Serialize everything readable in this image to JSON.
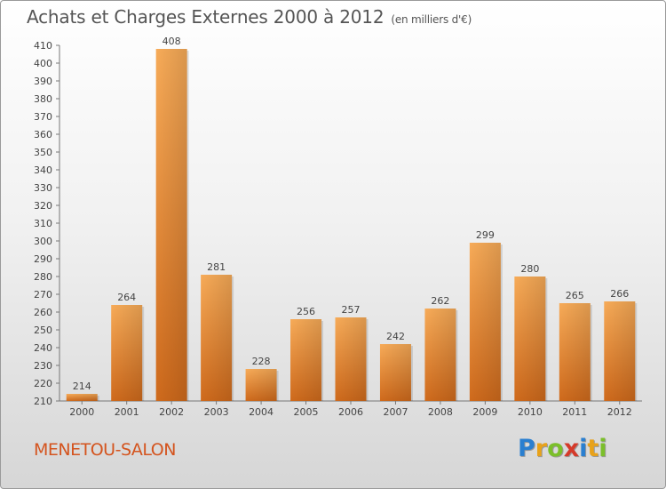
{
  "title": "Achats et Charges Externes 2000 à 2012",
  "subtitle": "(en milliers d'€)",
  "commune": "MENETOU-SALON",
  "logo": {
    "letters": [
      "P",
      "r",
      "o",
      "x",
      "i",
      "t",
      "i"
    ],
    "colors": [
      "#2a7fd0",
      "#e8a21a",
      "#7bbf2a",
      "#d53a2a",
      "#2a7fd0",
      "#e8a21a",
      "#7bbf2a"
    ]
  },
  "colors": {
    "bar_light": "#f5a550",
    "bar_dark": "#cf6a1c",
    "title": "#555555",
    "commune": "#d4541e"
  },
  "chart_data": {
    "type": "bar",
    "title": "Achats et Charges Externes 2000 à 2012",
    "subtitle": "(en milliers d'€)",
    "xlabel": "",
    "ylabel": "",
    "categories": [
      "2000",
      "2001",
      "2002",
      "2003",
      "2004",
      "2005",
      "2006",
      "2007",
      "2008",
      "2009",
      "2010",
      "2011",
      "2012"
    ],
    "values": [
      214,
      264,
      408,
      281,
      228,
      256,
      257,
      242,
      262,
      299,
      280,
      265,
      266
    ],
    "ylim": [
      210,
      410
    ],
    "ytick_step": 10,
    "grid": false,
    "legend": "none"
  }
}
